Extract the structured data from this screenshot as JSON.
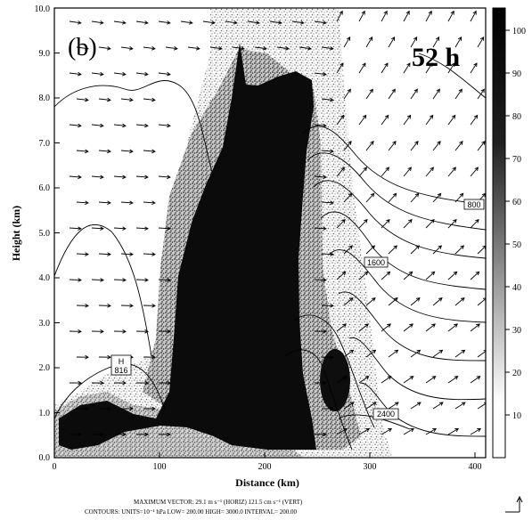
{
  "figure": {
    "panel_label": "(b)",
    "time_label": "52 h",
    "caption_line1": "MAXIMUM VECTOR:  29.1 m s⁻¹ (HORIZ)          121.5 cm s⁻¹ (VERT)",
    "caption_line2": "CONTOURS:  UNITS=10⁻¹ hPa   LOW=  200.00         HIGH=  3000.0      INTERVAL=   200.00",
    "contour_labels": [
      "800",
      "1600",
      "2400"
    ],
    "high_marker": {
      "symbol": "H",
      "value": "816"
    },
    "colors": {
      "ink": "#000000",
      "background": "#ffffff"
    }
  },
  "chart_data": {
    "type": "heatmap",
    "title": "",
    "xlabel": "Distance (km)",
    "ylabel": "Height (km)",
    "xlim": [
      0,
      410
    ],
    "ylim": [
      0,
      10
    ],
    "x_ticks": [
      "0",
      "100",
      "200",
      "300",
      "400"
    ],
    "y_ticks": [
      "0.0",
      "1.0",
      "2.0",
      "3.0",
      "4.0",
      "5.0",
      "6.0",
      "7.0",
      "8.0",
      "9.0",
      "10.0"
    ],
    "colorbar": {
      "min": 0,
      "max": 105,
      "ticks": [
        "10",
        "20",
        "30",
        "40",
        "50",
        "60",
        "70",
        "80",
        "90",
        "100"
      ]
    },
    "overlays": [
      "contours",
      "wind vectors"
    ],
    "grid": false
  }
}
